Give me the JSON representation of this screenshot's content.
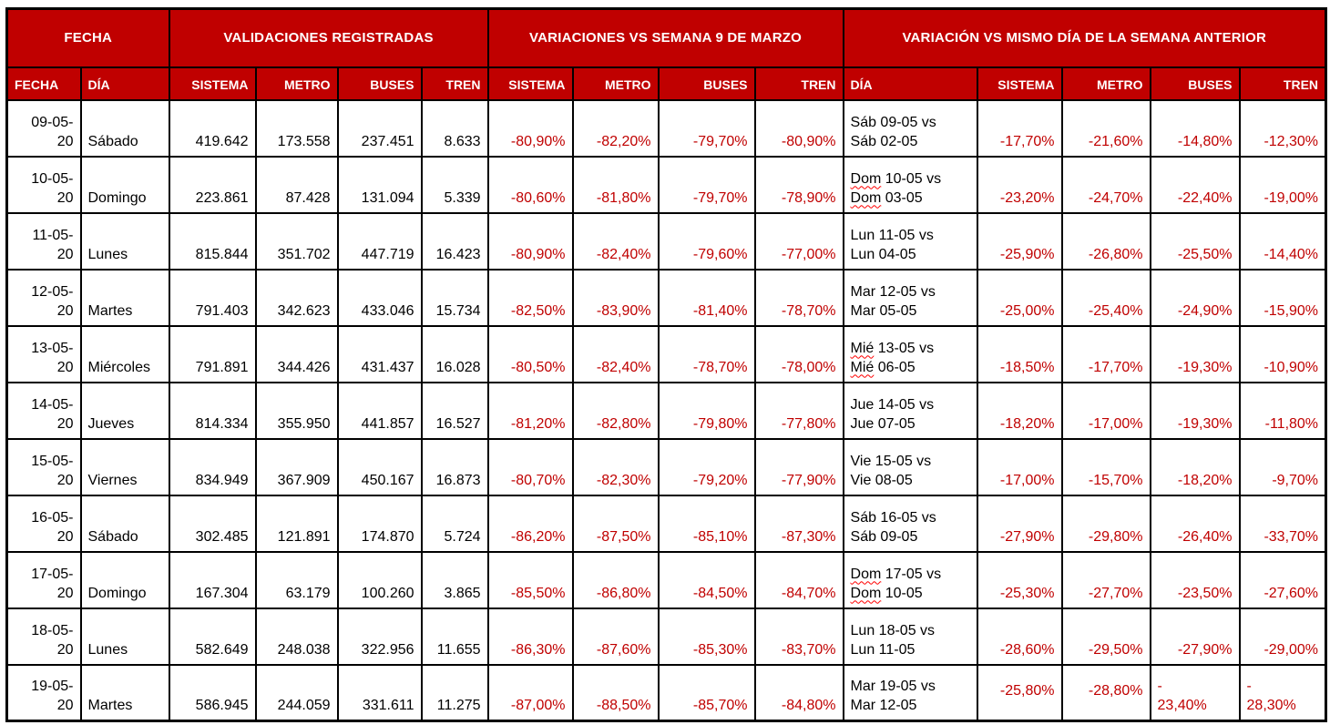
{
  "colors": {
    "header_bg": "#C00000",
    "header_text": "#FFFFFF",
    "negative_text": "#C00000",
    "body_text": "#000000",
    "border": "#000000",
    "squiggle": "#FF0000"
  },
  "table": {
    "header_groups": [
      {
        "label": "FECHA",
        "colspan": 2
      },
      {
        "label": "VALIDACIONES REGISTRADAS",
        "colspan": 4
      },
      {
        "label": "VARIACIONES VS SEMANA 9 DE MARZO",
        "colspan": 4
      },
      {
        "label": "VARIACIÓN VS MISMO DÍA DE LA SEMANA ANTERIOR",
        "colspan": 5
      }
    ],
    "columns": [
      "FECHA",
      "DÍA",
      "SISTEMA",
      "METRO",
      "BUSES",
      "TREN",
      "SISTEMA",
      "METRO",
      "BUSES",
      "TREN",
      "DÍA",
      "SISTEMA",
      "METRO",
      "BUSES",
      "TREN"
    ],
    "rows": [
      {
        "date_lines": [
          "09-05-",
          "20"
        ],
        "day": "Sábado",
        "sistema": "419.642",
        "metro": "173.558",
        "buses": "237.451",
        "tren": "8.633",
        "var_sistema": "-80,90%",
        "var_metro": "-82,20%",
        "var_buses": "-79,70%",
        "var_tren": "-80,90%",
        "cmp_lines": [
          {
            "word": "Sáb",
            "rest": " 09-05 vs",
            "squiggle": false
          },
          {
            "word": "Sáb",
            "rest": " 02-05",
            "squiggle": false
          }
        ],
        "prev_sistema": "-17,70%",
        "prev_metro": "-21,60%",
        "prev_buses": "-14,80%",
        "prev_tren": "-12,30%"
      },
      {
        "date_lines": [
          "10-05-",
          "20"
        ],
        "day": "Domingo",
        "sistema": "223.861",
        "metro": "87.428",
        "buses": "131.094",
        "tren": "5.339",
        "var_sistema": "-80,60%",
        "var_metro": "-81,80%",
        "var_buses": "-79,70%",
        "var_tren": "-78,90%",
        "cmp_lines": [
          {
            "word": "Dom",
            "rest": " 10-05 vs",
            "squiggle": true
          },
          {
            "word": "Dom",
            "rest": " 03-05",
            "squiggle": true
          }
        ],
        "prev_sistema": "-23,20%",
        "prev_metro": "-24,70%",
        "prev_buses": "-22,40%",
        "prev_tren": "-19,00%"
      },
      {
        "date_lines": [
          "11-05-",
          "20"
        ],
        "day": "Lunes",
        "sistema": "815.844",
        "metro": "351.702",
        "buses": "447.719",
        "tren": "16.423",
        "var_sistema": "-80,90%",
        "var_metro": "-82,40%",
        "var_buses": "-79,60%",
        "var_tren": "-77,00%",
        "cmp_lines": [
          {
            "word": "Lun",
            "rest": " 11-05 vs",
            "squiggle": false
          },
          {
            "word": "Lun",
            "rest": " 04-05",
            "squiggle": false
          }
        ],
        "prev_sistema": "-25,90%",
        "prev_metro": "-26,80%",
        "prev_buses": "-25,50%",
        "prev_tren": "-14,40%"
      },
      {
        "date_lines": [
          "12-05-",
          "20"
        ],
        "day": "Martes",
        "sistema": "791.403",
        "metro": "342.623",
        "buses": "433.046",
        "tren": "15.734",
        "var_sistema": "-82,50%",
        "var_metro": "-83,90%",
        "var_buses": "-81,40%",
        "var_tren": "-78,70%",
        "cmp_lines": [
          {
            "word": "Mar",
            "rest": " 12-05 vs",
            "squiggle": false
          },
          {
            "word": "Mar",
            "rest": " 05-05",
            "squiggle": false
          }
        ],
        "prev_sistema": "-25,00%",
        "prev_metro": "-25,40%",
        "prev_buses": "-24,90%",
        "prev_tren": "-15,90%"
      },
      {
        "date_lines": [
          "13-05-",
          "20"
        ],
        "day": "Miércoles",
        "sistema": "791.891",
        "metro": "344.426",
        "buses": "431.437",
        "tren": "16.028",
        "var_sistema": "-80,50%",
        "var_metro": "-82,40%",
        "var_buses": "-78,70%",
        "var_tren": "-78,00%",
        "cmp_lines": [
          {
            "word": "Mié",
            "rest": " 13-05 vs",
            "squiggle": true
          },
          {
            "word": "Mié",
            "rest": " 06-05",
            "squiggle": true
          }
        ],
        "prev_sistema": "-18,50%",
        "prev_metro": "-17,70%",
        "prev_buses": "-19,30%",
        "prev_tren": "-10,90%"
      },
      {
        "date_lines": [
          "14-05-",
          "20"
        ],
        "day": "Jueves",
        "sistema": "814.334",
        "metro": "355.950",
        "buses": "441.857",
        "tren": "16.527",
        "var_sistema": "-81,20%",
        "var_metro": "-82,80%",
        "var_buses": "-79,80%",
        "var_tren": "-77,80%",
        "cmp_lines": [
          {
            "word": "Jue",
            "rest": " 14-05 vs",
            "squiggle": false
          },
          {
            "word": "Jue",
            "rest": " 07-05",
            "squiggle": false
          }
        ],
        "prev_sistema": "-18,20%",
        "prev_metro": "-17,00%",
        "prev_buses": "-19,30%",
        "prev_tren": "-11,80%"
      },
      {
        "date_lines": [
          "15-05-",
          "20"
        ],
        "day": "Viernes",
        "sistema": "834.949",
        "metro": "367.909",
        "buses": "450.167",
        "tren": "16.873",
        "var_sistema": "-80,70%",
        "var_metro": "-82,30%",
        "var_buses": "-79,20%",
        "var_tren": "-77,90%",
        "cmp_lines": [
          {
            "word": "Vie",
            "rest": " 15-05 vs",
            "squiggle": false
          },
          {
            "word": "Vie",
            "rest": " 08-05",
            "squiggle": false
          }
        ],
        "prev_sistema": "-17,00%",
        "prev_metro": "-15,70%",
        "prev_buses": "-18,20%",
        "prev_tren": "-9,70%"
      },
      {
        "date_lines": [
          "16-05-",
          "20"
        ],
        "day": "Sábado",
        "sistema": "302.485",
        "metro": "121.891",
        "buses": "174.870",
        "tren": "5.724",
        "var_sistema": "-86,20%",
        "var_metro": "-87,50%",
        "var_buses": "-85,10%",
        "var_tren": "-87,30%",
        "cmp_lines": [
          {
            "word": "Sáb",
            "rest": " 16-05 vs",
            "squiggle": false
          },
          {
            "word": "Sáb",
            "rest": " 09-05",
            "squiggle": false
          }
        ],
        "prev_sistema": "-27,90%",
        "prev_metro": "-29,80%",
        "prev_buses": "-26,40%",
        "prev_tren": "-33,70%"
      },
      {
        "date_lines": [
          "17-05-",
          "20"
        ],
        "day": "Domingo",
        "sistema": "167.304",
        "metro": "63.179",
        "buses": "100.260",
        "tren": "3.865",
        "var_sistema": "-85,50%",
        "var_metro": "-86,80%",
        "var_buses": "-84,50%",
        "var_tren": "-84,70%",
        "cmp_lines": [
          {
            "word": "Dom",
            "rest": " 17-05 vs",
            "squiggle": true
          },
          {
            "word": "Dom",
            "rest": " 10-05",
            "squiggle": true
          }
        ],
        "prev_sistema": "-25,30%",
        "prev_metro": "-27,70%",
        "prev_buses": "-23,50%",
        "prev_tren": "-27,60%"
      },
      {
        "date_lines": [
          "18-05-",
          "20"
        ],
        "day": "Lunes",
        "sistema": "582.649",
        "metro": "248.038",
        "buses": "322.956",
        "tren": "11.655",
        "var_sistema": "-86,30%",
        "var_metro": "-87,60%",
        "var_buses": "-85,30%",
        "var_tren": "-83,70%",
        "cmp_lines": [
          {
            "word": "Lun",
            "rest": " 18-05 vs",
            "squiggle": false
          },
          {
            "word": "Lun",
            "rest": " 11-05",
            "squiggle": false
          }
        ],
        "prev_sistema": "-28,60%",
        "prev_metro": "-29,50%",
        "prev_buses": "-27,90%",
        "prev_tren": "-29,00%"
      },
      {
        "date_lines": [
          "19-05-",
          "20"
        ],
        "day": "Martes",
        "sistema": "586.945",
        "metro": "244.059",
        "buses": "331.611",
        "tren": "11.275",
        "var_sistema": "-87,00%",
        "var_metro": "-88,50%",
        "var_buses": "-85,70%",
        "var_tren": "-84,80%",
        "cmp_lines": [
          {
            "word": "Mar",
            "rest": " 19-05 vs",
            "squiggle": false
          },
          {
            "word": "Mar",
            "rest": " 12-05",
            "squiggle": false
          }
        ],
        "prev_sistema": "-25,80%",
        "prev_metro": "-28,80%",
        "prev_buses": [
          "-",
          "23,40%"
        ],
        "prev_tren": [
          "-",
          "28,30%"
        ],
        "cell_classes": {
          "prev_sistema": "v-mid",
          "prev_metro": "v-mid",
          "prev_buses": "split",
          "prev_tren": "split"
        }
      }
    ]
  }
}
